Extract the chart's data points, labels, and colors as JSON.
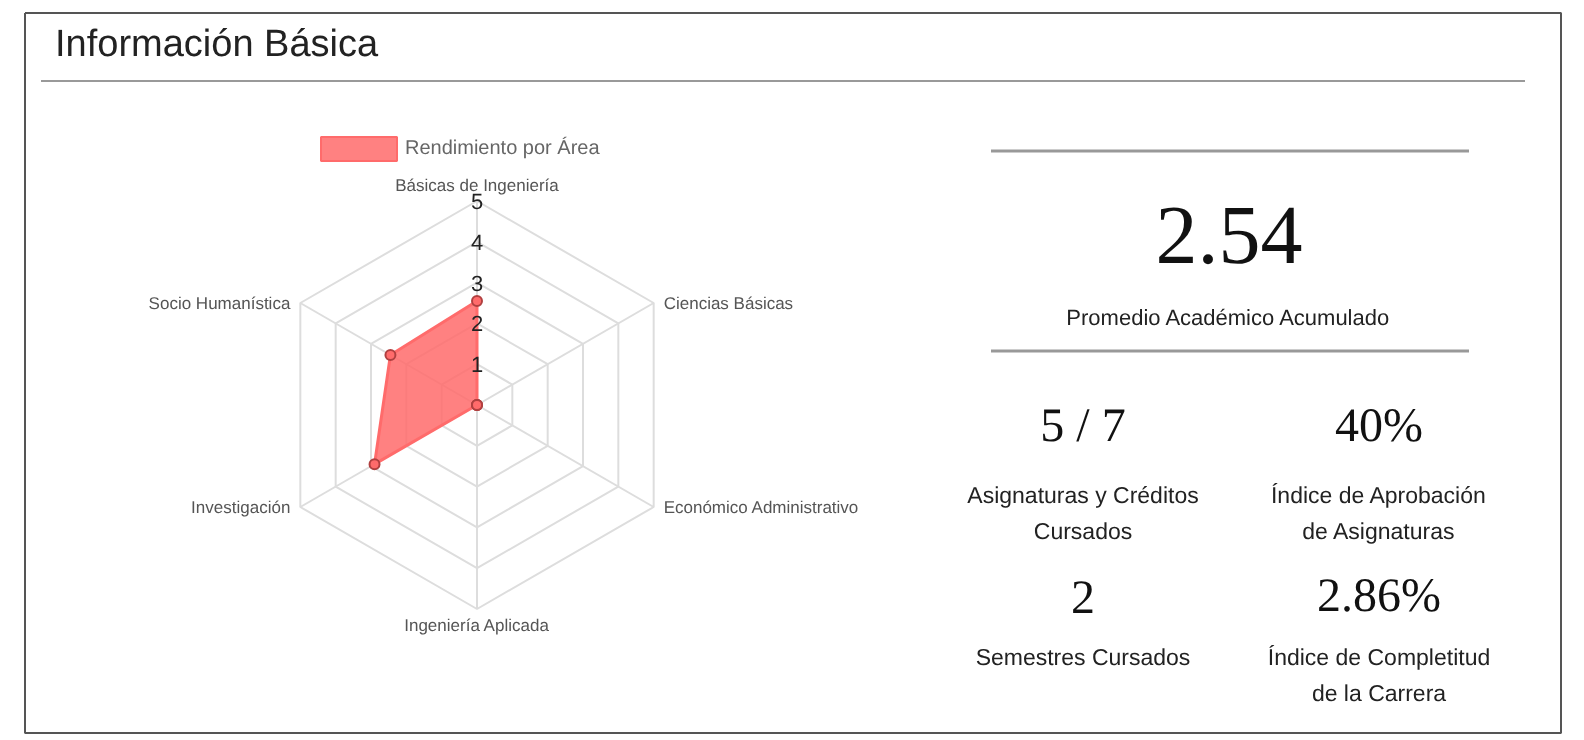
{
  "chart_data": [
    {
      "type": "radar",
      "title": "Información Básica",
      "categories": [
        "Básicas de Ingeniería",
        "Ciencias Básicas",
        "Económico Administrativo",
        "Ingeniería Aplicada",
        "Investigación",
        "Socio Humanística"
      ],
      "series": [
        {
          "name": "Rendimiento por Área",
          "color": "#ff6b6b",
          "values": [
            2.55,
            0,
            0,
            0,
            2.9,
            2.45
          ]
        }
      ],
      "ylim": [
        0,
        5
      ],
      "yticks": [
        1,
        2,
        3,
        4,
        5
      ],
      "grid": true,
      "legend": "top",
      "marker": "circle"
    },
    {
      "type": "other",
      "annotations": [
        "2.54",
        "Promedio Académico Acumulado",
        "5 / 7",
        "Asignaturas y Créditos Cursados",
        "40%",
        "Índice de Aprobación de Asignaturas",
        "2",
        "Semestres Cursados",
        "2.86%",
        "Índice de Completitud de la Carrera"
      ]
    }
  ]
}
